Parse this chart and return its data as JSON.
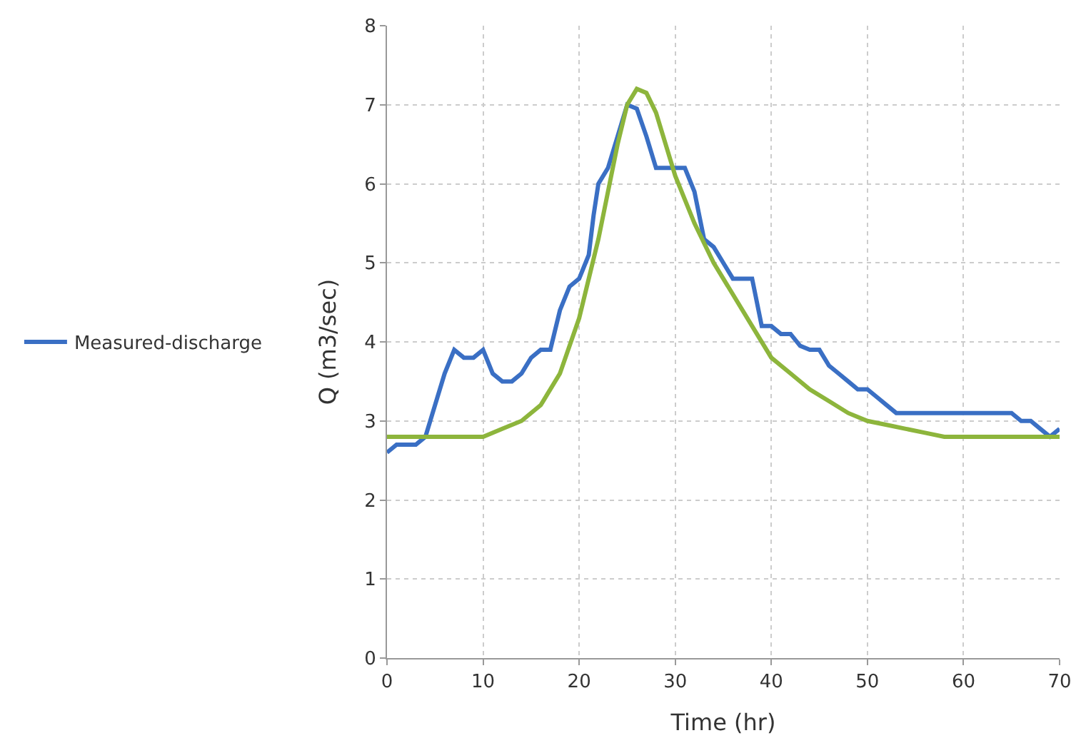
{
  "chart_data": {
    "type": "line",
    "xlabel": "Time (hr)",
    "ylabel": "Q (m3/sec)",
    "xlim": [
      0,
      70
    ],
    "xticks": [
      0,
      10,
      20,
      30,
      40,
      50,
      60,
      70
    ],
    "ylim": [
      0,
      8
    ],
    "yticks": [
      0,
      1,
      2,
      3,
      4,
      5,
      6,
      7,
      8
    ],
    "grid": true,
    "legend": "left",
    "marker": "none",
    "line_style": "solid",
    "series": [
      {
        "name": "Measured-discharge",
        "color": "#3a6fc4",
        "x": [
          0,
          1,
          3,
          4,
          5,
          6,
          7,
          8,
          9,
          10,
          11,
          12,
          13,
          14,
          15,
          16,
          17,
          18,
          19,
          20,
          21,
          21.5,
          22,
          23,
          24,
          25,
          26,
          27,
          28,
          30,
          31,
          32,
          33,
          34,
          35,
          36,
          37,
          38,
          39,
          40,
          41,
          42,
          43,
          44,
          45,
          46,
          47,
          48,
          49,
          50,
          51,
          52,
          53,
          60,
          65,
          66,
          67,
          68,
          69,
          70
        ],
        "values": [
          2.6,
          2.7,
          2.7,
          2.8,
          3.2,
          3.6,
          3.9,
          3.8,
          3.8,
          3.9,
          3.6,
          3.5,
          3.5,
          3.6,
          3.8,
          3.9,
          3.9,
          4.4,
          4.7,
          4.8,
          5.1,
          5.6,
          6.0,
          6.2,
          6.6,
          7.0,
          6.95,
          6.6,
          6.2,
          6.2,
          6.2,
          5.9,
          5.3,
          5.2,
          5.0,
          4.8,
          4.8,
          4.8,
          4.2,
          4.2,
          4.1,
          4.1,
          3.95,
          3.9,
          3.9,
          3.7,
          3.6,
          3.5,
          3.4,
          3.4,
          3.3,
          3.2,
          3.1,
          3.1,
          3.1,
          3.0,
          3.0,
          2.9,
          2.8,
          2.9
        ]
      },
      {
        "color": "#8db53c",
        "x": [
          0,
          10,
          12,
          14,
          16,
          18,
          20,
          22,
          24,
          25,
          26,
          27,
          28,
          29,
          30,
          32,
          34,
          36,
          38,
          40,
          42,
          44,
          46,
          48,
          50,
          52,
          54,
          56,
          58,
          70
        ],
        "values": [
          2.8,
          2.8,
          2.9,
          3.0,
          3.2,
          3.6,
          4.3,
          5.3,
          6.5,
          7.0,
          7.2,
          7.15,
          6.9,
          6.5,
          6.1,
          5.5,
          5.0,
          4.6,
          4.2,
          3.8,
          3.6,
          3.4,
          3.25,
          3.1,
          3.0,
          2.95,
          2.9,
          2.85,
          2.8,
          2.8
        ]
      }
    ]
  }
}
